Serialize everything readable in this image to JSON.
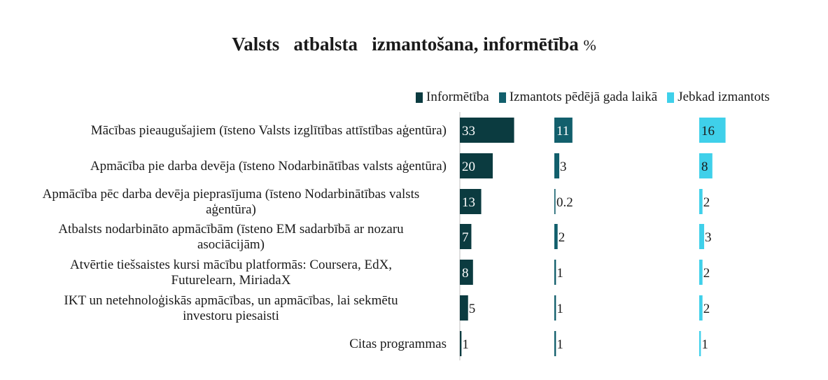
{
  "chart_data": {
    "type": "bar",
    "orientation": "horizontal",
    "layout": "panels",
    "title": "Valsts   atbalsta   izmantošana, informētība",
    "title_suffix": "%",
    "legend_position": "top-right",
    "grid": false,
    "categories": [
      "Mācības pieaugušajiem (īsteno Valsts izglītības attīstības aģentūra)",
      "Apmācība pie darba devēja (īsteno Nodarbinātības valsts aģentūra)",
      "Apmācība pēc darba devēja pieprasījuma (īsteno Nodarbinātības valsts aģentūra)",
      "Atbalsts nodarbināto apmācībām (īsteno EM sadarbībā ar nozaru asociācijām)",
      "Atvērtie tiešsaistes kursi mācību platformās: Coursera, EdX, Futurelearn, MiriadaX",
      "IKT un netehnoloģiskās apmācības, un apmācības, lai sekmētu investoru piesaisti",
      "Citas programmas"
    ],
    "category_lines": [
      [
        "Mācības pieaugušajiem (īsteno Valsts izglītības attīstības aģentūra)"
      ],
      [
        "Apmācība pie darba devēja (īsteno Nodarbinātības valsts aģentūra)"
      ],
      [
        "Apmācība pēc darba devēja pieprasījuma (īsteno Nodarbinātības valsts",
        "aģentūra)"
      ],
      [
        "Atbalsts nodarbināto apmācībām (īsteno EM sadarbībā ar nozaru",
        "asociācijām)"
      ],
      [
        "Atvērtie tiešsaistes kursi mācību platformās: Coursera, EdX,",
        "Futurelearn, MiriadaX"
      ],
      [
        "IKT un netehnoloģiskās apmācības, un apmācības, lai sekmētu",
        "investoru piesaisti"
      ],
      [
        "Citas programmas"
      ]
    ],
    "series": [
      {
        "name": "Informētība",
        "color": "#0b3b40",
        "values": [
          33,
          20,
          13,
          7,
          8,
          5,
          1
        ],
        "labels": [
          "33",
          "20",
          "13",
          "7",
          "8",
          "5",
          "1"
        ]
      },
      {
        "name": "Izmantots pēdējā gada laikā",
        "color": "#125f6c",
        "values": [
          11,
          3,
          0.2,
          2,
          1,
          1,
          1
        ],
        "labels": [
          "11",
          "3",
          "0.2",
          "2",
          "1",
          "1",
          "1"
        ]
      },
      {
        "name": "Jebkad izmantots",
        "color": "#3fd0ea",
        "values": [
          16,
          8,
          2,
          3,
          2,
          2,
          1
        ],
        "labels": [
          "16",
          "8",
          "2",
          "3",
          "2",
          "2",
          "1"
        ]
      }
    ]
  }
}
